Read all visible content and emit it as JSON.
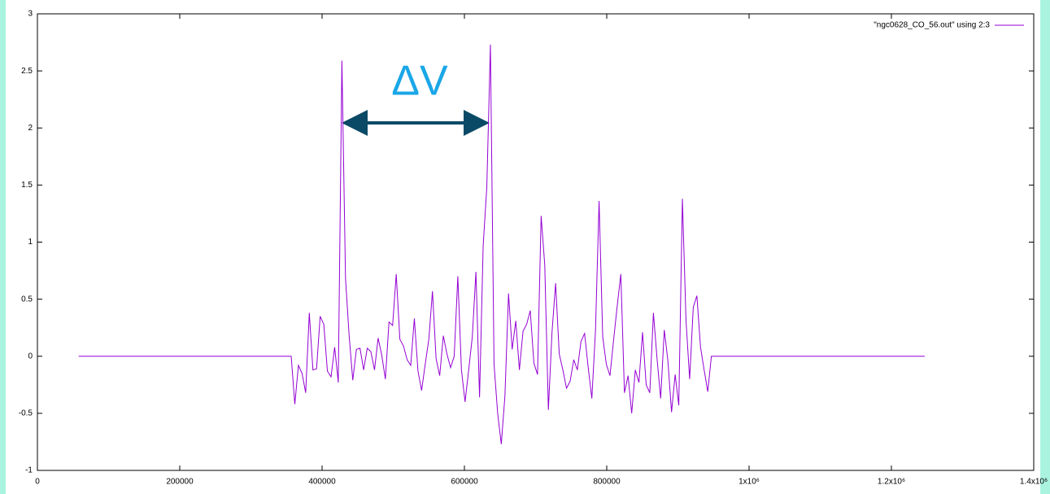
{
  "chart_data": {
    "type": "line",
    "annotation": "ΔV",
    "x": [
      58000,
      356600,
      361690,
      366780,
      371870,
      376960,
      382050,
      387140,
      392230,
      397320,
      402410,
      407500,
      412590,
      417680,
      422770,
      427860,
      432950,
      438040,
      443130,
      448220,
      453310,
      458400,
      463490,
      468580,
      473670,
      478760,
      483850,
      488940,
      494030,
      499120,
      504210,
      509300,
      514390,
      519480,
      524570,
      529660,
      534750,
      539840,
      544930,
      550020,
      555110,
      560200,
      565290,
      570380,
      575470,
      580560,
      585650,
      590740,
      595830,
      600920,
      606010,
      611100,
      616190,
      621280,
      626370,
      631460,
      636550,
      641640,
      646730,
      651820,
      656910,
      662000,
      667090,
      672180,
      677270,
      682360,
      687450,
      692540,
      697630,
      702720,
      707810,
      712900,
      717990,
      723080,
      728170,
      733260,
      738350,
      743440,
      748530,
      753620,
      758710,
      763800,
      768890,
      773980,
      779070,
      784160,
      789250,
      794340,
      799430,
      804520,
      809610,
      814700,
      819790,
      824880,
      829970,
      835060,
      840150,
      845240,
      850330,
      855420,
      860510,
      865600,
      870690,
      875780,
      880870,
      885960,
      891050,
      896140,
      901230,
      906320,
      911410,
      916500,
      921590,
      926680,
      931770,
      936860,
      941950,
      947040,
      1246900
    ],
    "series": [
      {
        "name": "\"ngc0628_CO_56.out\" using 2:3",
        "color": "#9400d3",
        "values": [
          0,
          0,
          -0.42,
          -0.08,
          -0.15,
          -0.32,
          0.38,
          -0.12,
          -0.11,
          0.35,
          0.28,
          -0.13,
          -0.18,
          0.08,
          -0.23,
          2.59,
          0.68,
          0.18,
          -0.21,
          0.06,
          0.07,
          -0.12,
          0.07,
          0.04,
          -0.12,
          0.16,
          0.01,
          -0.2,
          0.3,
          0.27,
          0.72,
          0.15,
          0.09,
          -0.03,
          -0.08,
          0.33,
          -0.13,
          -0.3,
          -0.07,
          0.15,
          0.57,
          -0.02,
          -0.17,
          0.18,
          0.02,
          -0.1,
          0.0,
          0.7,
          -0.12,
          -0.4,
          -0.12,
          0.17,
          0.74,
          -0.36,
          0.97,
          1.48,
          2.73,
          -0.07,
          -0.5,
          -0.77,
          -0.35,
          0.55,
          0.06,
          0.31,
          -0.12,
          0.22,
          0.28,
          0.4,
          -0.06,
          -0.16,
          1.23,
          0.8,
          -0.47,
          0.21,
          0.64,
          0.02,
          -0.12,
          -0.28,
          -0.22,
          -0.03,
          -0.12,
          0.13,
          0.2,
          -0.1,
          -0.37,
          0.22,
          1.36,
          0.17,
          -0.07,
          -0.17,
          0.14,
          0.44,
          0.72,
          -0.32,
          -0.17,
          -0.5,
          -0.12,
          -0.23,
          0.21,
          -0.25,
          -0.32,
          0.38,
          -0.02,
          -0.37,
          0.23,
          -0.04,
          -0.49,
          -0.16,
          -0.43,
          1.38,
          0.31,
          -0.2,
          0.43,
          0.53,
          0.08,
          -0.12,
          -0.31,
          0,
          0
        ]
      }
    ],
    "xlim": [
      0,
      1400000
    ],
    "xticks": [
      0,
      200000,
      400000,
      600000,
      800000,
      {
        "value": 1000000,
        "label": "1x10⁶"
      },
      {
        "value": 1200000,
        "label": "1.2x10⁶"
      },
      {
        "value": 1400000,
        "label": "1.4x10⁶"
      }
    ],
    "ylim": [
      -1,
      3
    ],
    "yticks": [
      -1,
      -0.5,
      0,
      0.5,
      1,
      1.5,
      2,
      2.5,
      3
    ],
    "grid": false,
    "legend": "top-right"
  }
}
